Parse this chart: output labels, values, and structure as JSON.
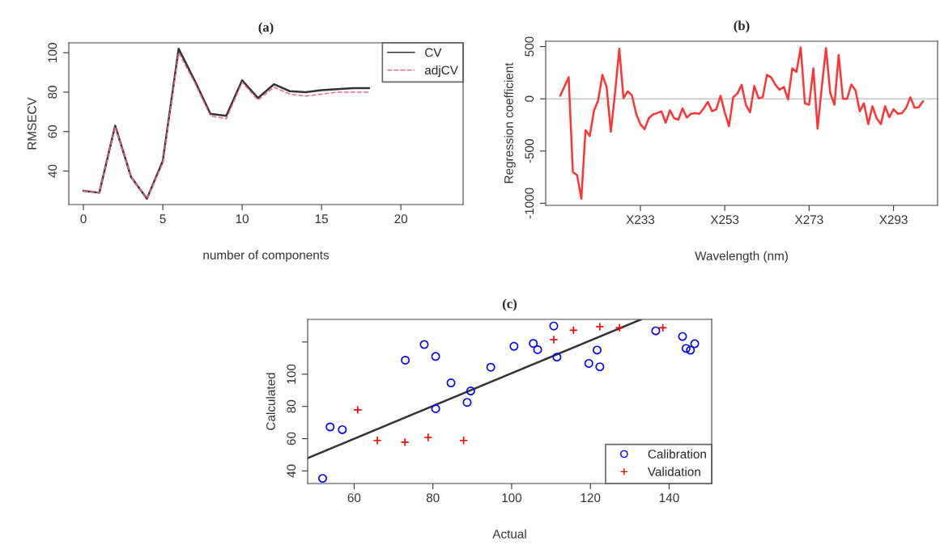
{
  "chart_data": [
    {
      "type": "line",
      "title": "(a)",
      "xlabel": "number of components",
      "ylabel": "RMSECV",
      "x": [
        0,
        1,
        2,
        3,
        4,
        5,
        6,
        7,
        8,
        9,
        10,
        11,
        12,
        13,
        14,
        15,
        16,
        17,
        18
      ],
      "series": [
        {
          "name": "CV",
          "color": "#333333",
          "line_style": "solid",
          "values": [
            30,
            29,
            63,
            37,
            26,
            45,
            102,
            86,
            69,
            68,
            86,
            77,
            84,
            80.5,
            80,
            81,
            81.5,
            82,
            82
          ]
        },
        {
          "name": "adjCV",
          "color": "#f06292",
          "line_style": "dashed",
          "values": [
            30,
            29,
            62.5,
            37,
            26,
            44,
            100,
            85,
            68,
            66.5,
            85,
            76,
            82.5,
            79,
            78,
            79,
            80,
            80,
            80
          ]
        }
      ],
      "xlim": [
        -0.92,
        23.92
      ],
      "ylim": [
        23,
        105
      ],
      "xticks": [
        0,
        5,
        10,
        15,
        20
      ],
      "yticks": [
        40,
        60,
        80,
        100
      ],
      "legend": "top right",
      "grid": false
    },
    {
      "type": "line",
      "title": "(b)",
      "xlabel": "Wavelength (nm)",
      "ylabel": "Regression coefficient",
      "categories": [
        null,
        null,
        null,
        null,
        null,
        null,
        null,
        null,
        null,
        null,
        null,
        null,
        null,
        null,
        null,
        null,
        null,
        null,
        null,
        "X233",
        null,
        null,
        null,
        null,
        null,
        null,
        null,
        null,
        null,
        null,
        null,
        null,
        null,
        null,
        null,
        null,
        null,
        null,
        null,
        "X253",
        null,
        null,
        null,
        null,
        null,
        null,
        null,
        null,
        null,
        null,
        null,
        null,
        null,
        null,
        null,
        null,
        null,
        null,
        null,
        "X273",
        null,
        null,
        null,
        null,
        null,
        null,
        null,
        null,
        null,
        null,
        null,
        null,
        null,
        null,
        null,
        null,
        null,
        null,
        null,
        "X293",
        null,
        null,
        null,
        null,
        null,
        null,
        null
      ],
      "series": [
        {
          "color": "#ff3333",
          "values": [
            29,
            117,
            206,
            -700,
            -729,
            -957,
            -300,
            -357,
            -114,
            -14,
            229,
            114,
            -314,
            57,
            480,
            6,
            71,
            34,
            -143,
            -243,
            -291,
            -186,
            -149,
            -137,
            -120,
            -229,
            -109,
            -186,
            -200,
            -91,
            -180,
            -143,
            -137,
            -143,
            -91,
            -29,
            -120,
            -100,
            29,
            -129,
            -263,
            14,
            51,
            134,
            -57,
            -129,
            123,
            6,
            14,
            229,
            206,
            134,
            86,
            114,
            -6,
            291,
            257,
            491,
            -43,
            -57,
            291,
            -286,
            114,
            486,
            57,
            -57,
            420,
            0,
            0,
            137,
            80,
            -120,
            -43,
            -243,
            -71,
            -186,
            -243,
            -71,
            -177,
            -100,
            -143,
            -137,
            -86,
            14,
            -86,
            -80,
            -23
          ]
        }
      ],
      "ylim": [
        -1020,
        551
      ],
      "yticks": [
        -1000,
        -500,
        0,
        500
      ],
      "ref_lines": [
        {
          "axis": "y",
          "value": 0,
          "color": "#c8c8c8"
        }
      ],
      "grid": false
    },
    {
      "type": "scatter",
      "title": "(c)",
      "xlabel": "Actual",
      "ylabel": "Calculated",
      "series": [
        {
          "name": "Calibration",
          "color": "#0000ff",
          "marker": "circle",
          "x": [
            52.0,
            53.9,
            57.0,
            73.0,
            77.8,
            80.7,
            80.7,
            84.6,
            88.7,
            89.6,
            94.7,
            100.6,
            105.5,
            106.6,
            110.7,
            111.5,
            119.6,
            121.7,
            122.4,
            136.6,
            143.4,
            144.3,
            145.4,
            146.5
          ],
          "values": [
            35.4,
            67.3,
            65.6,
            108.7,
            118.4,
            111.0,
            78.6,
            94.6,
            82.5,
            89.6,
            104.3,
            117.3,
            119.1,
            115.2,
            129.9,
            110.6,
            106.7,
            115.0,
            104.6,
            126.9,
            123.4,
            116.0,
            114.9,
            118.9
          ]
        },
        {
          "name": "Validation",
          "color": "#ff0000",
          "marker": "cross",
          "x": [
            60.9,
            65.9,
            72.9,
            78.8,
            87.8,
            110.7,
            115.7,
            122.4,
            127.4,
            138.4
          ],
          "values": [
            77.9,
            58.9,
            57.8,
            60.8,
            58.9,
            121.4,
            127.3,
            129.4,
            128.8,
            128.8
          ]
        },
        {
          "type": "line",
          "color": "#333333",
          "x": [
            48.2,
            132.9
          ],
          "values": [
            48.0,
            134.0
          ]
        }
      ],
      "xlim": [
        48.2,
        150.8
      ],
      "ylim": [
        32.2,
        134
      ],
      "xticks": [
        60,
        80,
        100,
        120,
        140
      ],
      "yticks": [
        40,
        60,
        80,
        100,
        {
          "value": 120,
          "label": null
        }
      ],
      "legend": "bottom right",
      "grid": false
    }
  ]
}
